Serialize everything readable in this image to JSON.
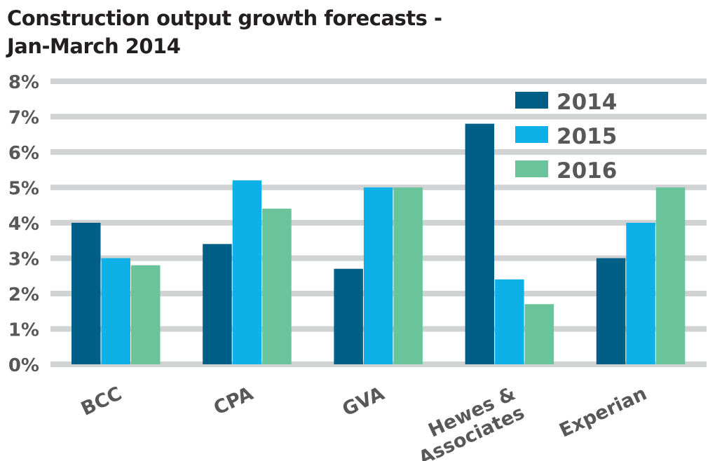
{
  "chart_data": {
    "type": "bar",
    "title": "Construction output growth forecasts -",
    "subtitle": "Jan-March 2014",
    "xlabel": "",
    "ylabel": "",
    "categories": [
      "BCC",
      "CPA",
      "GVA",
      "Hewes & Associates",
      "Experian"
    ],
    "category_lines": [
      [
        "BCC"
      ],
      [
        "CPA"
      ],
      [
        "GVA"
      ],
      [
        "Hewes &",
        "Associates"
      ],
      [
        "Experian"
      ]
    ],
    "series": [
      {
        "name": "2014",
        "color": "#005f87",
        "values": [
          4.0,
          3.4,
          2.7,
          6.8,
          3.0
        ]
      },
      {
        "name": "2015",
        "color": "#0db1e7",
        "values": [
          3.0,
          5.2,
          5.0,
          2.4,
          4.0
        ]
      },
      {
        "name": "2016",
        "color": "#69c49c",
        "values": [
          2.8,
          4.4,
          5.0,
          1.7,
          5.0
        ]
      }
    ],
    "ylim": [
      0,
      8
    ],
    "yticks": [
      "0%",
      "1%",
      "2%",
      "3%",
      "4%",
      "5%",
      "6%",
      "7%",
      "8%"
    ],
    "grid": true,
    "grid_color": "#d1d2d4",
    "legend": "top-right"
  }
}
